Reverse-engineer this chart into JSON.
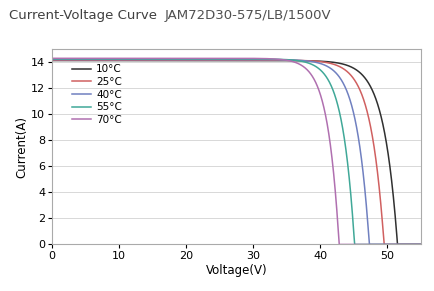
{
  "title1": "Current-Voltage Curve",
  "title2": "JAM72D30-575/LB/1500V",
  "xlabel": "Voltage(V)",
  "ylabel": "Current(A)",
  "xlim": [
    0,
    55
  ],
  "ylim": [
    0,
    15
  ],
  "xticks": [
    0,
    10,
    20,
    30,
    40,
    50
  ],
  "yticks": [
    0,
    2,
    4,
    6,
    8,
    10,
    12,
    14
  ],
  "colors": [
    "#303030",
    "#d06060",
    "#7080c0",
    "#40a898",
    "#b070b0"
  ],
  "labels": [
    "10°C",
    "25°C",
    "40°C",
    "55°C",
    "70°C"
  ],
  "Isc": [
    14.15,
    14.18,
    14.22,
    14.27,
    14.32
  ],
  "Voc": [
    51.5,
    49.5,
    47.3,
    45.1,
    42.8
  ],
  "n_sharp": [
    25,
    25,
    25,
    25,
    25
  ],
  "background_color": "#ffffff",
  "grid_color": "#d8d8d8"
}
